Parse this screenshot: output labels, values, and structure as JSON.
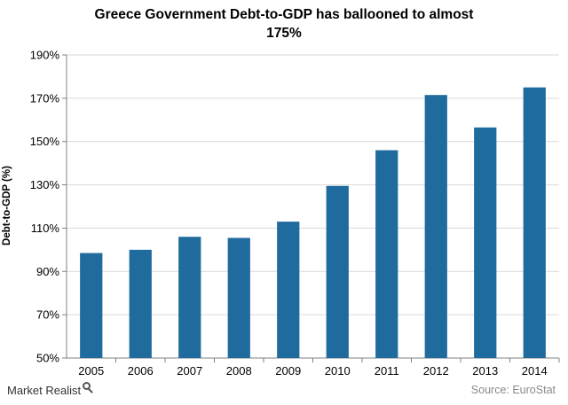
{
  "chart_data": {
    "type": "bar",
    "title_lines": [
      "Greece Government Debt-to-GDP has ballooned to almost",
      "175%"
    ],
    "ylabel": "Debt-to-GDP (%)",
    "xlabel": "",
    "categories": [
      "2005",
      "2006",
      "2007",
      "2008",
      "2009",
      "2010",
      "2011",
      "2012",
      "2013",
      "2014"
    ],
    "values": [
      98.5,
      100,
      106,
      105.5,
      113,
      129.5,
      146,
      171.5,
      156.5,
      175
    ],
    "ylim": [
      50,
      190
    ],
    "yticks": [
      50,
      70,
      90,
      110,
      130,
      150,
      170,
      190
    ],
    "ytick_labels": [
      "50%",
      "70%",
      "90%",
      "110%",
      "130%",
      "150%",
      "170%",
      "190%"
    ],
    "bar_color": "#1f6b9e",
    "grid": true,
    "legend": "none"
  },
  "branding": {
    "name": "Market Realist"
  },
  "source": {
    "text": "Source: EuroStat"
  }
}
